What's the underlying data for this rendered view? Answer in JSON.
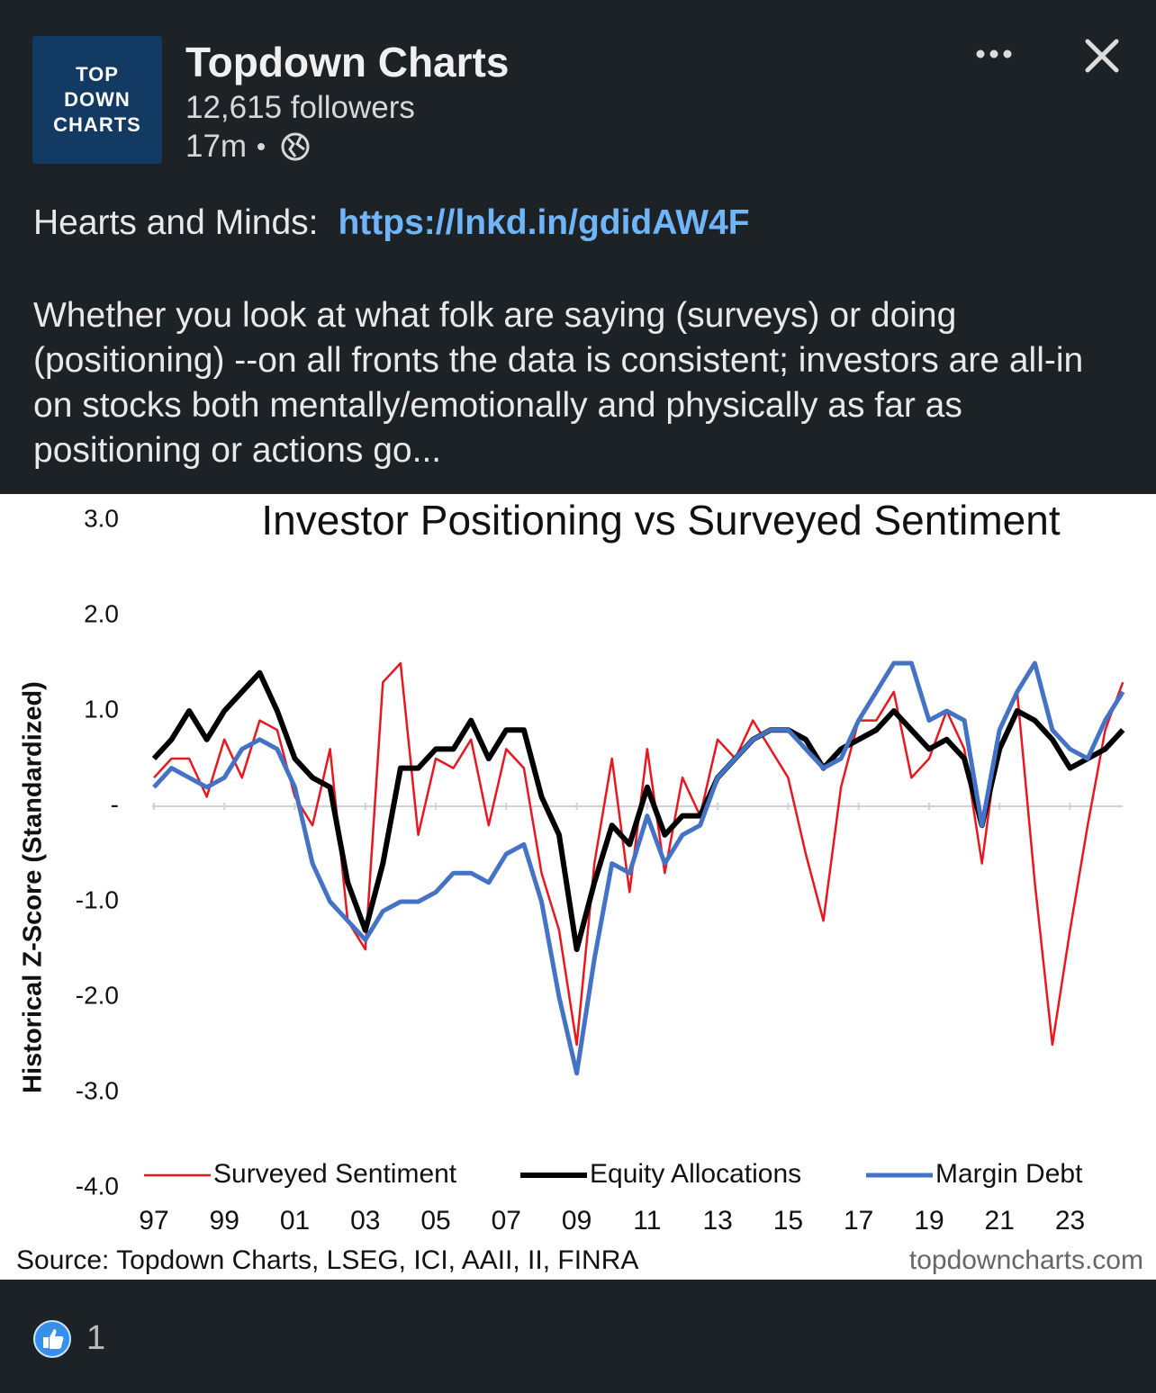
{
  "post": {
    "logo": [
      "TOP",
      "DOWN",
      "CHARTS"
    ],
    "author": "Topdown Charts",
    "followers": "12,615 followers",
    "time": "17m",
    "intro": "Hearts and Minds:",
    "link": "https://lnkd.in/gdidAW4F",
    "body": "Whether you look at what folk are saying (surveys) or doing (positioning) --on all fronts the data is consistent; investors are all-in on stocks both mentally/emotionally and physically as far as positioning or actions go...",
    "reactions": "1"
  },
  "chart_data": {
    "type": "line",
    "title": "Investor Positioning vs Surveyed Sentiment",
    "y_label": "Historical Z-Score (Standardized)",
    "source": "Source: Topdown Charts, LSEG, ICI, AAII, II, FINRA",
    "watermark": "topdowncharts.com",
    "x": [
      1997.0,
      1997.5,
      1998.0,
      1998.5,
      1999.0,
      1999.5,
      2000.0,
      2000.5,
      2001.0,
      2001.5,
      2002.0,
      2002.5,
      2003.0,
      2003.5,
      2004.0,
      2004.5,
      2005.0,
      2005.5,
      2006.0,
      2006.5,
      2007.0,
      2007.5,
      2008.0,
      2008.5,
      2009.0,
      2009.5,
      2010.0,
      2010.5,
      2011.0,
      2011.5,
      2012.0,
      2012.5,
      2013.0,
      2013.5,
      2014.0,
      2014.5,
      2015.0,
      2015.5,
      2016.0,
      2016.5,
      2017.0,
      2017.5,
      2018.0,
      2018.5,
      2019.0,
      2019.5,
      2020.0,
      2020.5,
      2021.0,
      2021.5,
      2022.0,
      2022.5,
      2023.0,
      2023.5,
      2024.0,
      2024.5
    ],
    "series": [
      {
        "name": "Surveyed Sentiment",
        "color": "#e8171f",
        "width": 2.5,
        "values": [
          0.3,
          0.5,
          0.5,
          0.1,
          0.7,
          0.3,
          0.9,
          0.8,
          0.1,
          -0.2,
          0.6,
          -1.2,
          -1.5,
          1.3,
          1.5,
          -0.3,
          0.5,
          0.4,
          0.7,
          -0.2,
          0.6,
          0.4,
          -0.7,
          -1.3,
          -2.5,
          -0.6,
          0.5,
          -0.9,
          0.6,
          -0.7,
          0.3,
          -0.1,
          0.7,
          0.5,
          0.9,
          0.6,
          0.3,
          -0.5,
          -1.2,
          0.2,
          0.9,
          0.9,
          1.2,
          0.3,
          0.5,
          1.0,
          0.6,
          -0.6,
          0.8,
          1.2,
          -0.8,
          -2.5,
          -1.3,
          -0.2,
          0.8,
          1.3
        ]
      },
      {
        "name": "Equity Allocations",
        "color": "#000000",
        "width": 6,
        "values": [
          0.5,
          0.7,
          1.0,
          0.7,
          1.0,
          1.2,
          1.4,
          1.0,
          0.5,
          0.3,
          0.2,
          -0.8,
          -1.3,
          -0.6,
          0.4,
          0.4,
          0.6,
          0.6,
          0.9,
          0.5,
          0.8,
          0.8,
          0.1,
          -0.3,
          -1.5,
          -0.8,
          -0.2,
          -0.4,
          0.2,
          -0.3,
          -0.1,
          -0.1,
          0.3,
          0.5,
          0.7,
          0.8,
          0.8,
          0.7,
          0.4,
          0.6,
          0.7,
          0.8,
          1.0,
          0.8,
          0.6,
          0.7,
          0.5,
          -0.2,
          0.6,
          1.0,
          0.9,
          0.7,
          0.4,
          0.5,
          0.6,
          0.8
        ]
      },
      {
        "name": "Margin Debt",
        "color": "#4472c4",
        "width": 5,
        "values": [
          0.2,
          0.4,
          0.3,
          0.2,
          0.3,
          0.6,
          0.7,
          0.6,
          0.2,
          -0.6,
          -1.0,
          -1.2,
          -1.4,
          -1.1,
          -1.0,
          -1.0,
          -0.9,
          -0.7,
          -0.7,
          -0.8,
          -0.5,
          -0.4,
          -1.0,
          -2.0,
          -2.8,
          -1.6,
          -0.6,
          -0.7,
          -0.1,
          -0.6,
          -0.3,
          -0.2,
          0.3,
          0.5,
          0.7,
          0.8,
          0.8,
          0.6,
          0.4,
          0.5,
          0.9,
          1.2,
          1.5,
          1.5,
          0.9,
          1.0,
          0.9,
          -0.2,
          0.8,
          1.2,
          1.5,
          0.8,
          0.6,
          0.5,
          0.9,
          1.2
        ]
      }
    ],
    "xlim": [
      1996.95,
      2024.75
    ],
    "xticks": [
      {
        "value": 1997,
        "label": "97"
      },
      {
        "value": 1999,
        "label": "99"
      },
      {
        "value": 2001,
        "label": "01"
      },
      {
        "value": 2003,
        "label": "03"
      },
      {
        "value": 2005,
        "label": "05"
      },
      {
        "value": 2007,
        "label": "07"
      },
      {
        "value": 2009,
        "label": "09"
      },
      {
        "value": 2011,
        "label": "11"
      },
      {
        "value": 2013,
        "label": "13"
      },
      {
        "value": 2015,
        "label": "15"
      },
      {
        "value": 2017,
        "label": "17"
      },
      {
        "value": 2019,
        "label": "19"
      },
      {
        "value": 2021,
        "label": "21"
      },
      {
        "value": 2023,
        "label": "23"
      }
    ],
    "ylim": [
      -4,
      3
    ],
    "yticks": [
      {
        "value": 3,
        "label": "3.0"
      },
      {
        "value": 2,
        "label": "2.0"
      },
      {
        "value": 1,
        "label": "1.0"
      },
      {
        "value": 0,
        "label": "-"
      },
      {
        "value": -1,
        "label": "-1.0"
      },
      {
        "value": -2,
        "label": "-2.0"
      },
      {
        "value": -3,
        "label": "-3.0"
      },
      {
        "value": -4,
        "label": "-4.0"
      }
    ],
    "zero_line": true,
    "legend": "bottom"
  }
}
